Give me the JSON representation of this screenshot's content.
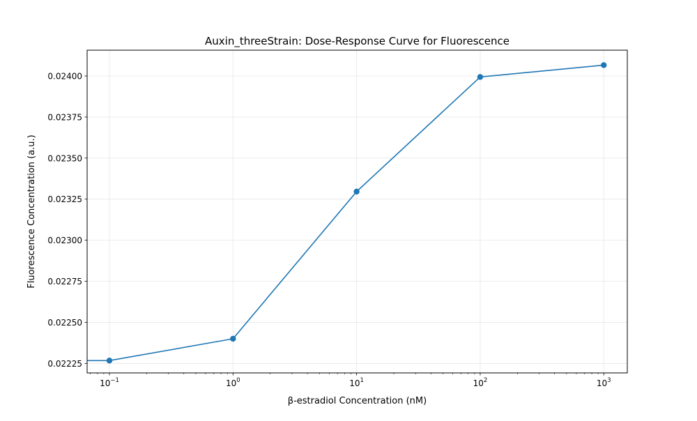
{
  "chart_data": {
    "type": "line",
    "title": "Auxin_threeStrain: Dose-Response Curve for Fluorescence",
    "xlabel": "β-estradiol Concentration (nM)",
    "ylabel": "Fluorescence Concentration (a.u.)",
    "xscale": "log",
    "xlim": [
      0.066,
      1550
    ],
    "ylim": [
      0.022192,
      0.024157
    ],
    "grid": true,
    "legend": "none",
    "x_ticks": [
      {
        "value": 0.1,
        "base": "10",
        "exp": "−1"
      },
      {
        "value": 1,
        "base": "10",
        "exp": "0"
      },
      {
        "value": 10,
        "base": "10",
        "exp": "1"
      },
      {
        "value": 100,
        "base": "10",
        "exp": "2"
      },
      {
        "value": 1000,
        "base": "10",
        "exp": "3"
      }
    ],
    "y_ticks": [
      {
        "value": 0.02225,
        "label": "0.02225"
      },
      {
        "value": 0.0225,
        "label": "0.02250"
      },
      {
        "value": 0.02275,
        "label": "0.02275"
      },
      {
        "value": 0.023,
        "label": "0.02300"
      },
      {
        "value": 0.02325,
        "label": "0.02325"
      },
      {
        "value": 0.0235,
        "label": "0.02350"
      },
      {
        "value": 0.02375,
        "label": "0.02375"
      },
      {
        "value": 0.024,
        "label": "0.02400"
      }
    ],
    "series": [
      {
        "color": "#1f77b4",
        "x": [
          0.05,
          0.1,
          1,
          10,
          100,
          1000
        ],
        "y": [
          0.022267,
          0.022267,
          0.0224,
          0.023296,
          0.023994,
          0.024066
        ],
        "marker_from_index": 1
      }
    ]
  }
}
